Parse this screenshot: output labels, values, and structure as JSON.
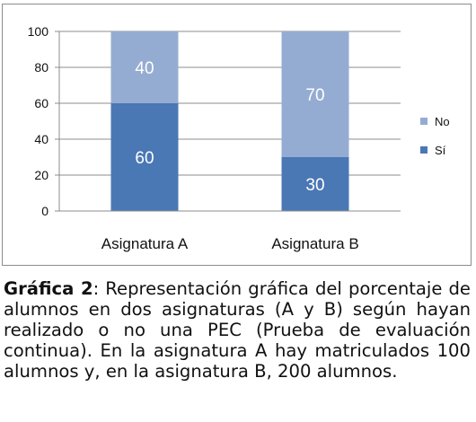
{
  "chart_data": {
    "type": "bar",
    "stacked": true,
    "categories": [
      "Asignatura A",
      "Asignatura B"
    ],
    "series": [
      {
        "name": "Sí",
        "values": [
          60,
          30
        ],
        "color": "#4a78b5"
      },
      {
        "name": "No",
        "values": [
          40,
          70
        ],
        "color": "#95acd2"
      }
    ],
    "ylim": [
      0,
      100
    ],
    "yticks": [
      "0",
      "20",
      "40",
      "60",
      "80",
      "100"
    ],
    "grid": true,
    "legend": "right",
    "legend_order": [
      "No",
      "Sí"
    ],
    "data_label_color": "#ffffff"
  },
  "caption": {
    "label": "Gráfica 2",
    "text": ": Representación gráfica del porcentaje de alumnos en dos asignaturas (A y B) según hayan realizado o no una PEC (Prueba de evaluación continua). En la asignatura A hay matriculados 100 alumnos y, en la asignatura B, 200 alumnos."
  }
}
